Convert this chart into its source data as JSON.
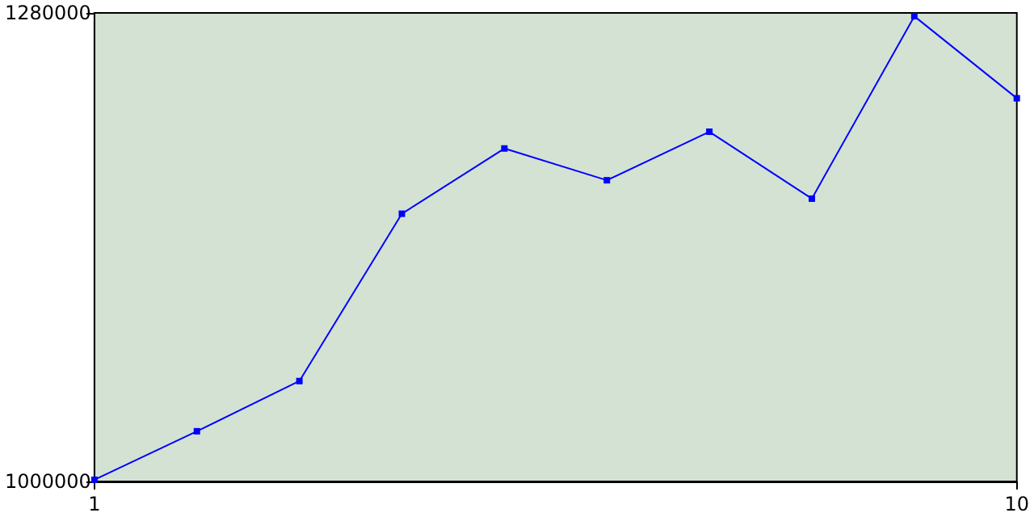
{
  "chart_data": {
    "type": "line",
    "x": [
      1,
      2,
      3,
      4,
      5,
      6,
      7,
      8,
      9,
      10
    ],
    "series": [
      {
        "color": "#0000ff",
        "values": [
          1001000,
          1030000,
          1060000,
          1160000,
          1199000,
          1180000,
          1209000,
          1169000,
          1278000,
          1229000
        ]
      }
    ],
    "xlim": [
      1,
      10
    ],
    "xticks": [
      1,
      10
    ],
    "ylim": [
      1000000,
      1280000
    ],
    "yticks": [
      1000000,
      1280000
    ],
    "marker": "square",
    "line_style": "solid"
  }
}
